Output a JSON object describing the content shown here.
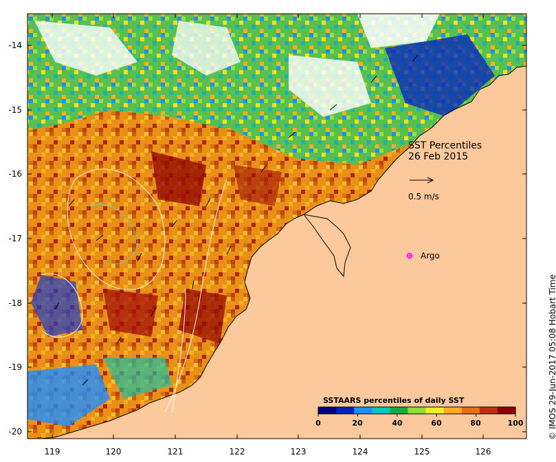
{
  "title": {
    "line1": "SST Percentiles",
    "line2": "26 Feb 2015"
  },
  "velocity_scale": {
    "label": "0.5 m/s"
  },
  "argo": {
    "label": "Argo",
    "color": "#ff00ff"
  },
  "colorbar": {
    "title": "SSTAARS percentiles of daily SST",
    "ticks": [
      "0",
      "20",
      "40",
      "60",
      "80",
      "100"
    ],
    "colors": [
      "#000080",
      "#0020c0",
      "#1e8fff",
      "#00c8c8",
      "#10b040",
      "#90e030",
      "#f0f020",
      "#f8b020",
      "#e87010",
      "#c03010",
      "#900000"
    ]
  },
  "axes": {
    "lat_labels": [
      "-14",
      "-15",
      "-16",
      "-17",
      "-18",
      "-19",
      "-20"
    ],
    "lon_labels": [
      "119",
      "120",
      "121",
      "122",
      "123",
      "124",
      "125",
      "126"
    ],
    "lat_range": [
      -20.1,
      -13.5
    ],
    "lon_range": [
      118.6,
      126.7
    ]
  },
  "land_color": "#fcc99d",
  "credit": "© IMOS 29-Jun-2017 05:08 Hobart Time"
}
